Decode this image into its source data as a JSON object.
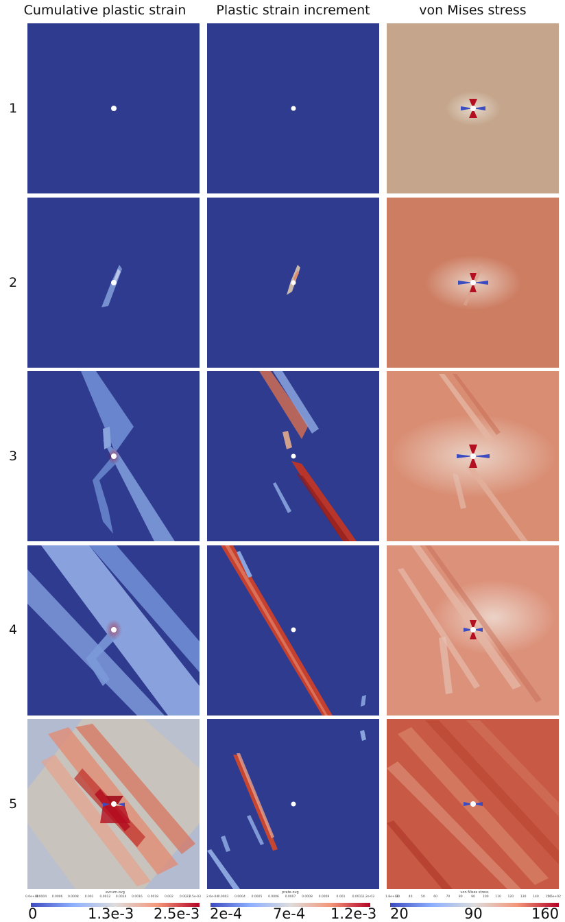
{
  "columns": [
    {
      "title": "Cumulative plastic strain"
    },
    {
      "title": "Plastic strain increment"
    },
    {
      "title": "von Mises stress"
    }
  ],
  "rows": [
    "1",
    "2",
    "3",
    "4",
    "5"
  ],
  "colorbars": [
    {
      "title": "evcum-ovg",
      "small_ticks": [
        "0.0e+00",
        "0.0004",
        "0.0006",
        "0.0008",
        "0.001",
        "0.0012",
        "0.0014",
        "0.0016",
        "0.0018",
        "0.002",
        "0.0022",
        "2.5e-03"
      ],
      "min_label": "0",
      "mid_label": "1.3e-3",
      "max_label": "2.5e-3"
    },
    {
      "title": "prate-ovg",
      "small_ticks": [
        "2.0e-04",
        "0.0003",
        "0.0004",
        "0.0005",
        "0.0006",
        "0.0007",
        "0.0008",
        "0.0009",
        "0.001",
        "0.0011",
        "1.2e-03"
      ],
      "min_label": "2e-4",
      "mid_label": "7e-4",
      "max_label": "1.2e-3"
    },
    {
      "title": "von Mises stress",
      "small_ticks": [
        "1.8e+01",
        "30",
        "40",
        "50",
        "60",
        "70",
        "80",
        "90",
        "100",
        "110",
        "120",
        "130",
        "140",
        "150",
        "1.6e+02"
      ],
      "min_label": "20",
      "mid_label": "90",
      "max_label": "160"
    }
  ],
  "colors": {
    "low": "#2f3b8f",
    "mid": "#c9c3bc",
    "high": "#b40f20"
  }
}
